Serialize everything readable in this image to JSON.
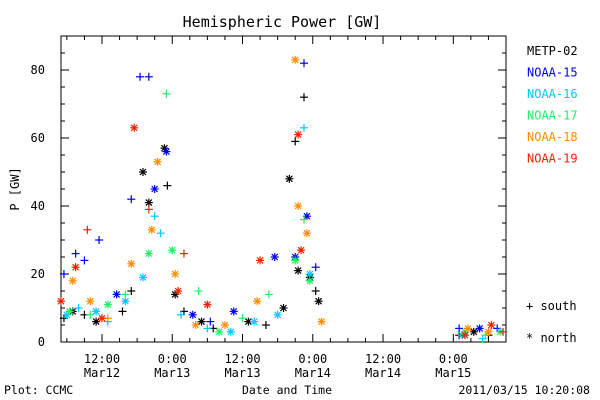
{
  "chart_data": {
    "type": "scatter",
    "title": "Hemispheric Power [GW]",
    "ylabel": "P [GW]",
    "xlabel": "Date and Time",
    "ylim": [
      0,
      90
    ],
    "xlim": [
      "2011-03-12T05:00",
      "2011-03-15T09:00"
    ],
    "yticks": [
      0,
      20,
      40,
      60,
      80
    ],
    "xticks": [
      {
        "t": "2011-03-12T12:00",
        "time": "12:00",
        "date": "Mar12"
      },
      {
        "t": "2011-03-13T00:00",
        "time": "0:00",
        "date": "Mar13"
      },
      {
        "t": "2011-03-13T12:00",
        "time": "12:00",
        "date": "Mar13"
      },
      {
        "t": "2011-03-14T00:00",
        "time": "0:00",
        "date": "Mar14"
      },
      {
        "t": "2011-03-14T12:00",
        "time": "12:00",
        "date": "Mar14"
      },
      {
        "t": "2011-03-15T00:00",
        "time": "0:00",
        "date": "Mar15"
      }
    ],
    "markers": {
      "south": "+",
      "north": "*"
    },
    "series": [
      {
        "name": "METP-02",
        "color": "#000000",
        "points": [
          [
            "2011-03-12T05:30",
            7,
            "s"
          ],
          [
            "2011-03-12T07:00",
            9,
            "n"
          ],
          [
            "2011-03-12T09:00",
            8,
            "s"
          ],
          [
            "2011-03-12T11:00",
            6,
            "n"
          ],
          [
            "2011-03-12T15:30",
            9,
            "s"
          ],
          [
            "2011-03-12T17:00",
            15,
            "s"
          ],
          [
            "2011-03-12T19:00",
            50,
            "n"
          ],
          [
            "2011-03-12T20:00",
            41,
            "n"
          ],
          [
            "2011-03-12T22:40",
            57,
            "n"
          ],
          [
            "2011-03-12T23:10",
            46,
            "s"
          ],
          [
            "2011-03-13T00:30",
            14,
            "n"
          ],
          [
            "2011-03-13T02:00",
            9,
            "s"
          ],
          [
            "2011-03-13T05:00",
            6,
            "n"
          ],
          [
            "2011-03-13T07:00",
            4,
            "s"
          ],
          [
            "2011-03-13T13:00",
            6,
            "n"
          ],
          [
            "2011-03-13T16:00",
            5,
            "s"
          ],
          [
            "2011-03-13T19:00",
            10,
            "n"
          ],
          [
            "2011-03-13T20:00",
            48,
            "n"
          ],
          [
            "2011-03-13T21:00",
            59,
            "s"
          ],
          [
            "2011-03-13T21:30",
            21,
            "n"
          ],
          [
            "2011-03-13T22:30",
            72,
            "s"
          ],
          [
            "2011-03-13T23:30",
            19,
            "n"
          ],
          [
            "2011-03-14T00:30",
            15,
            "s"
          ],
          [
            "2011-03-14T01:00",
            12,
            "n"
          ],
          [
            "2011-03-15T01:00",
            2,
            "s"
          ],
          [
            "2011-03-15T03:30",
            3,
            "n"
          ],
          [
            "2011-03-15T06:00",
            2,
            "s"
          ]
        ]
      },
      {
        "name": "NOAA-15",
        "color": "#0000ee",
        "points": [
          [
            "2011-03-12T05:30",
            20,
            "s"
          ],
          [
            "2011-03-12T07:30",
            26,
            "s"
          ],
          [
            "2011-03-12T09:00",
            24,
            "s"
          ],
          [
            "2011-03-12T11:30",
            30,
            "s"
          ],
          [
            "2011-03-12T14:30",
            14,
            "n"
          ],
          [
            "2011-03-12T17:00",
            42,
            "s"
          ],
          [
            "2011-03-12T18:30",
            78,
            "s"
          ],
          [
            "2011-03-12T20:00",
            78,
            "s"
          ],
          [
            "2011-03-12T21:00",
            45,
            "n"
          ],
          [
            "2011-03-12T23:00",
            56,
            "n"
          ],
          [
            "2011-03-13T03:30",
            8,
            "n"
          ],
          [
            "2011-03-13T06:30",
            6,
            "s"
          ],
          [
            "2011-03-13T10:30",
            9,
            "n"
          ],
          [
            "2011-03-13T17:30",
            25,
            "n"
          ],
          [
            "2011-03-13T21:00",
            25,
            "n"
          ],
          [
            "2011-03-13T22:30",
            82,
            "s"
          ],
          [
            "2011-03-13T23:00",
            37,
            "n"
          ],
          [
            "2011-03-14T00:30",
            22,
            "s"
          ],
          [
            "2011-03-15T01:00",
            4,
            "s"
          ],
          [
            "2011-03-15T04:30",
            4,
            "n"
          ],
          [
            "2011-03-15T07:30",
            4,
            "s"
          ]
        ]
      },
      {
        "name": "NOAA-16",
        "color": "#00c8ff",
        "points": [
          [
            "2011-03-12T06:00",
            8,
            "n"
          ],
          [
            "2011-03-12T08:00",
            10,
            "s"
          ],
          [
            "2011-03-12T11:00",
            9,
            "n"
          ],
          [
            "2011-03-12T13:00",
            6,
            "s"
          ],
          [
            "2011-03-12T16:00",
            12,
            "n"
          ],
          [
            "2011-03-12T19:00",
            19,
            "n"
          ],
          [
            "2011-03-12T21:00",
            37,
            "s"
          ],
          [
            "2011-03-12T22:00",
            32,
            "s"
          ],
          [
            "2011-03-13T01:30",
            8,
            "s"
          ],
          [
            "2011-03-13T06:00",
            4,
            "s"
          ],
          [
            "2011-03-13T10:00",
            3,
            "n"
          ],
          [
            "2011-03-13T14:00",
            6,
            "n"
          ],
          [
            "2011-03-13T18:00",
            8,
            "n"
          ],
          [
            "2011-03-13T22:30",
            63,
            "s"
          ],
          [
            "2011-03-13T23:30",
            20,
            "n"
          ],
          [
            "2011-03-15T01:30",
            2,
            "n"
          ],
          [
            "2011-03-15T05:00",
            1,
            "s"
          ]
        ]
      },
      {
        "name": "NOAA-17",
        "color": "#22ee66",
        "points": [
          [
            "2011-03-12T06:30",
            9,
            "n"
          ],
          [
            "2011-03-12T10:00",
            8,
            "s"
          ],
          [
            "2011-03-12T13:00",
            11,
            "n"
          ],
          [
            "2011-03-12T16:00",
            14,
            "s"
          ],
          [
            "2011-03-12T20:00",
            26,
            "n"
          ],
          [
            "2011-03-12T23:00",
            73,
            "s"
          ],
          [
            "2011-03-13T00:00",
            27,
            "n"
          ],
          [
            "2011-03-13T04:30",
            15,
            "s"
          ],
          [
            "2011-03-13T08:00",
            3,
            "n"
          ],
          [
            "2011-03-13T12:00",
            7,
            "s"
          ],
          [
            "2011-03-13T16:30",
            14,
            "s"
          ],
          [
            "2011-03-13T21:00",
            24,
            "n"
          ],
          [
            "2011-03-13T22:30",
            36,
            "s"
          ],
          [
            "2011-03-13T23:30",
            18,
            "n"
          ],
          [
            "2011-03-15T02:00",
            3,
            "n"
          ],
          [
            "2011-03-15T05:30",
            2,
            "s"
          ],
          [
            "2011-03-15T08:00",
            3,
            "n"
          ]
        ]
      },
      {
        "name": "NOAA-18",
        "color": "#ff8c00",
        "points": [
          [
            "2011-03-12T07:00",
            18,
            "n"
          ],
          [
            "2011-03-12T10:00",
            12,
            "n"
          ],
          [
            "2011-03-12T13:00",
            7,
            "s"
          ],
          [
            "2011-03-12T17:00",
            23,
            "n"
          ],
          [
            "2011-03-12T20:30",
            33,
            "n"
          ],
          [
            "2011-03-12T21:30",
            53,
            "n"
          ],
          [
            "2011-03-13T00:30",
            20,
            "n"
          ],
          [
            "2011-03-13T04:00",
            5,
            "n"
          ],
          [
            "2011-03-13T09:00",
            5,
            "n"
          ],
          [
            "2011-03-13T14:30",
            12,
            "n"
          ],
          [
            "2011-03-13T21:00",
            83,
            "n"
          ],
          [
            "2011-03-13T21:30",
            40,
            "n"
          ],
          [
            "2011-03-13T23:00",
            32,
            "n"
          ],
          [
            "2011-03-14T01:30",
            6,
            "n"
          ],
          [
            "2011-03-15T02:30",
            4,
            "n"
          ],
          [
            "2011-03-15T06:00",
            3,
            "n"
          ]
        ]
      },
      {
        "name": "NOAA-19",
        "color": "#ee2200",
        "points": [
          [
            "2011-03-12T05:00",
            12,
            "n"
          ],
          [
            "2011-03-12T07:30",
            22,
            "n"
          ],
          [
            "2011-03-12T09:30",
            33,
            "s"
          ],
          [
            "2011-03-12T12:00",
            7,
            "n"
          ],
          [
            "2011-03-12T17:30",
            63,
            "n"
          ],
          [
            "2011-03-12T20:00",
            39,
            "s"
          ],
          [
            "2011-03-13T01:00",
            15,
            "n"
          ],
          [
            "2011-03-13T02:00",
            26,
            "s"
          ],
          [
            "2011-03-13T06:00",
            11,
            "n"
          ],
          [
            "2011-03-13T15:00",
            24,
            "n"
          ],
          [
            "2011-03-13T21:30",
            61,
            "n"
          ],
          [
            "2011-03-13T22:00",
            27,
            "n"
          ],
          [
            "2011-03-15T02:00",
            2,
            "n"
          ],
          [
            "2011-03-15T06:30",
            5,
            "n"
          ],
          [
            "2011-03-15T08:30",
            3,
            "s"
          ]
        ]
      }
    ],
    "legend": [
      {
        "label": "METP-02",
        "color": "#000000"
      },
      {
        "label": "NOAA-15",
        "color": "#0000ee"
      },
      {
        "label": "NOAA-16",
        "color": "#00c8ff"
      },
      {
        "label": "NOAA-17",
        "color": "#22ee66"
      },
      {
        "label": "NOAA-18",
        "color": "#ff8c00"
      },
      {
        "label": "NOAA-19",
        "color": "#ee2200"
      }
    ],
    "marker_legend": [
      {
        "symbol": "+",
        "label": "south"
      },
      {
        "symbol": "*",
        "label": "north"
      }
    ]
  },
  "footer": {
    "left": "Plot: CCMC",
    "center": "Date and Time",
    "right": "2011/03/15 10:20:08"
  }
}
